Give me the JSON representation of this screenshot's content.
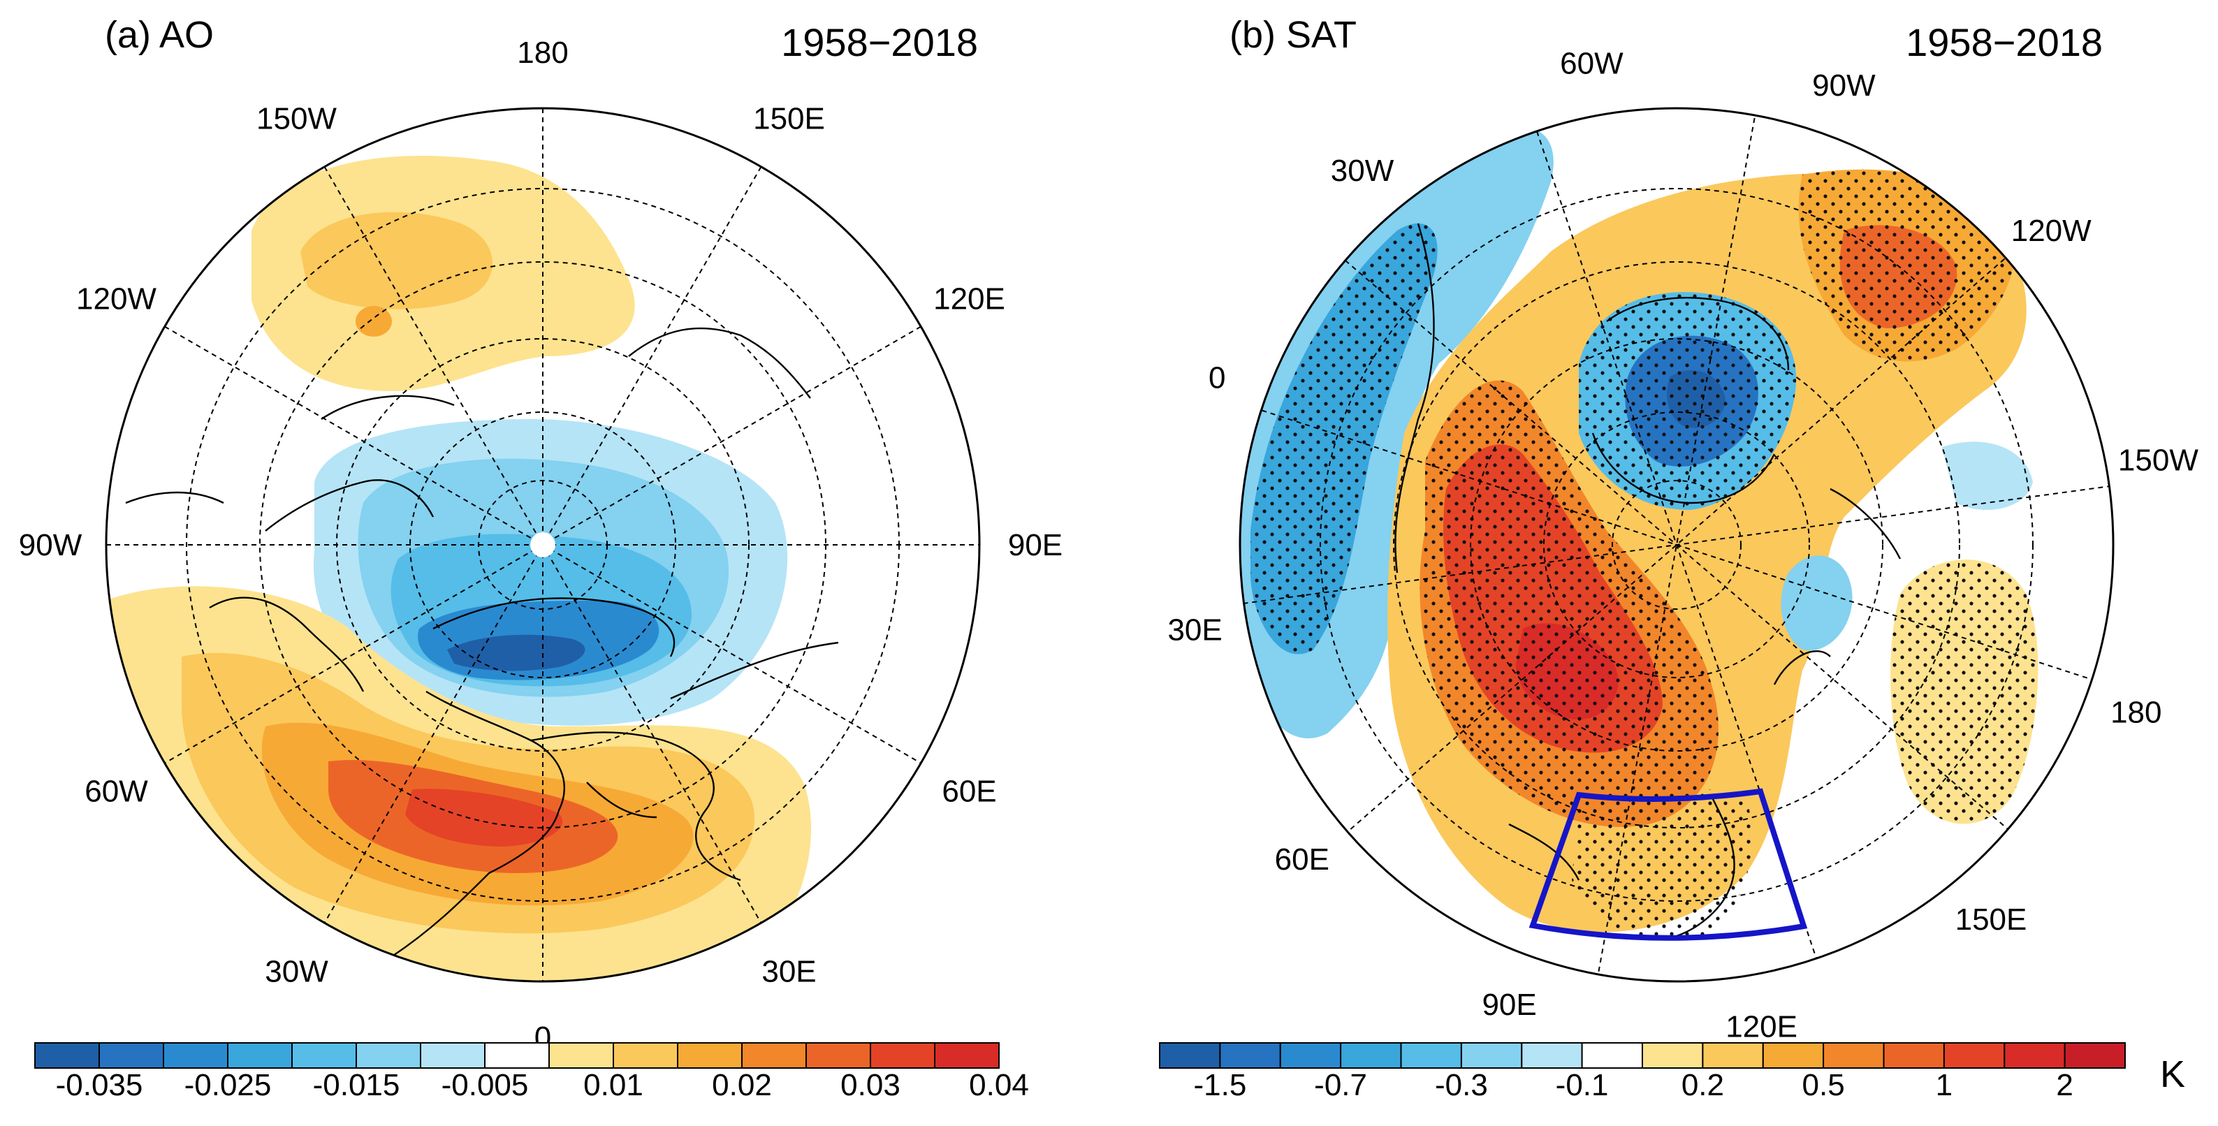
{
  "panels": [
    {
      "id": "a",
      "title": "(a) AO",
      "period": "1958−2018",
      "lon_labels": [
        {
          "text": "180",
          "lon": 180
        },
        {
          "text": "150E",
          "lon": 150
        },
        {
          "text": "120E",
          "lon": 120
        },
        {
          "text": "90E",
          "lon": 90
        },
        {
          "text": "60E",
          "lon": 60
        },
        {
          "text": "30E",
          "lon": 30
        },
        {
          "text": "0",
          "lon": 0
        },
        {
          "text": "30W",
          "lon": -30
        },
        {
          "text": "60W",
          "lon": -60
        },
        {
          "text": "90W",
          "lon": -90
        },
        {
          "text": "120W",
          "lon": -120
        },
        {
          "text": "150W",
          "lon": -150
        }
      ],
      "colorbar": {
        "colors": [
          "#1f5fa8",
          "#2673c2",
          "#2a8ad0",
          "#39a6dc",
          "#55bde8",
          "#84d1f0",
          "#b5e4f7",
          "#ffffff",
          "#fde38f",
          "#fbc85c",
          "#f7a935",
          "#f2862a",
          "#ec6528",
          "#e44327",
          "#d92b27"
        ],
        "tick_labels": [
          "-0.035",
          "-0.025",
          "-0.015",
          "-0.005",
          "0.01",
          "0.02",
          "0.03",
          "0.04"
        ],
        "unit": ""
      }
    },
    {
      "id": "b",
      "title": "(b) SAT",
      "period": "1958−2018",
      "lon_labels": [
        {
          "text": "60W",
          "lon": -60
        },
        {
          "text": "90W",
          "lon": -90
        },
        {
          "text": "120W",
          "lon": -120
        },
        {
          "text": "150W",
          "lon": -150
        },
        {
          "text": "180",
          "lon": 180
        },
        {
          "text": "150E",
          "lon": 150
        },
        {
          "text": "120E",
          "lon": 120
        },
        {
          "text": "90E",
          "lon": 90
        },
        {
          "text": "60E",
          "lon": 60
        },
        {
          "text": "30E",
          "lon": 30
        },
        {
          "text": "0",
          "lon": 0
        },
        {
          "text": "30W",
          "lon": -30
        }
      ],
      "colorbar": {
        "colors": [
          "#1f5fa8",
          "#2673c2",
          "#2a8ad0",
          "#39a6dc",
          "#55bde8",
          "#84d1f0",
          "#b5e4f7",
          "#ffffff",
          "#fde38f",
          "#fbc85c",
          "#f7a935",
          "#f2862a",
          "#ec6528",
          "#e44327",
          "#d92b27",
          "#c81e28"
        ],
        "tick_labels": [
          "-1.5",
          "-0.7",
          "-0.3",
          "-0.1",
          "0.2",
          "0.5",
          "1",
          "2"
        ],
        "unit": "K"
      }
    }
  ]
}
